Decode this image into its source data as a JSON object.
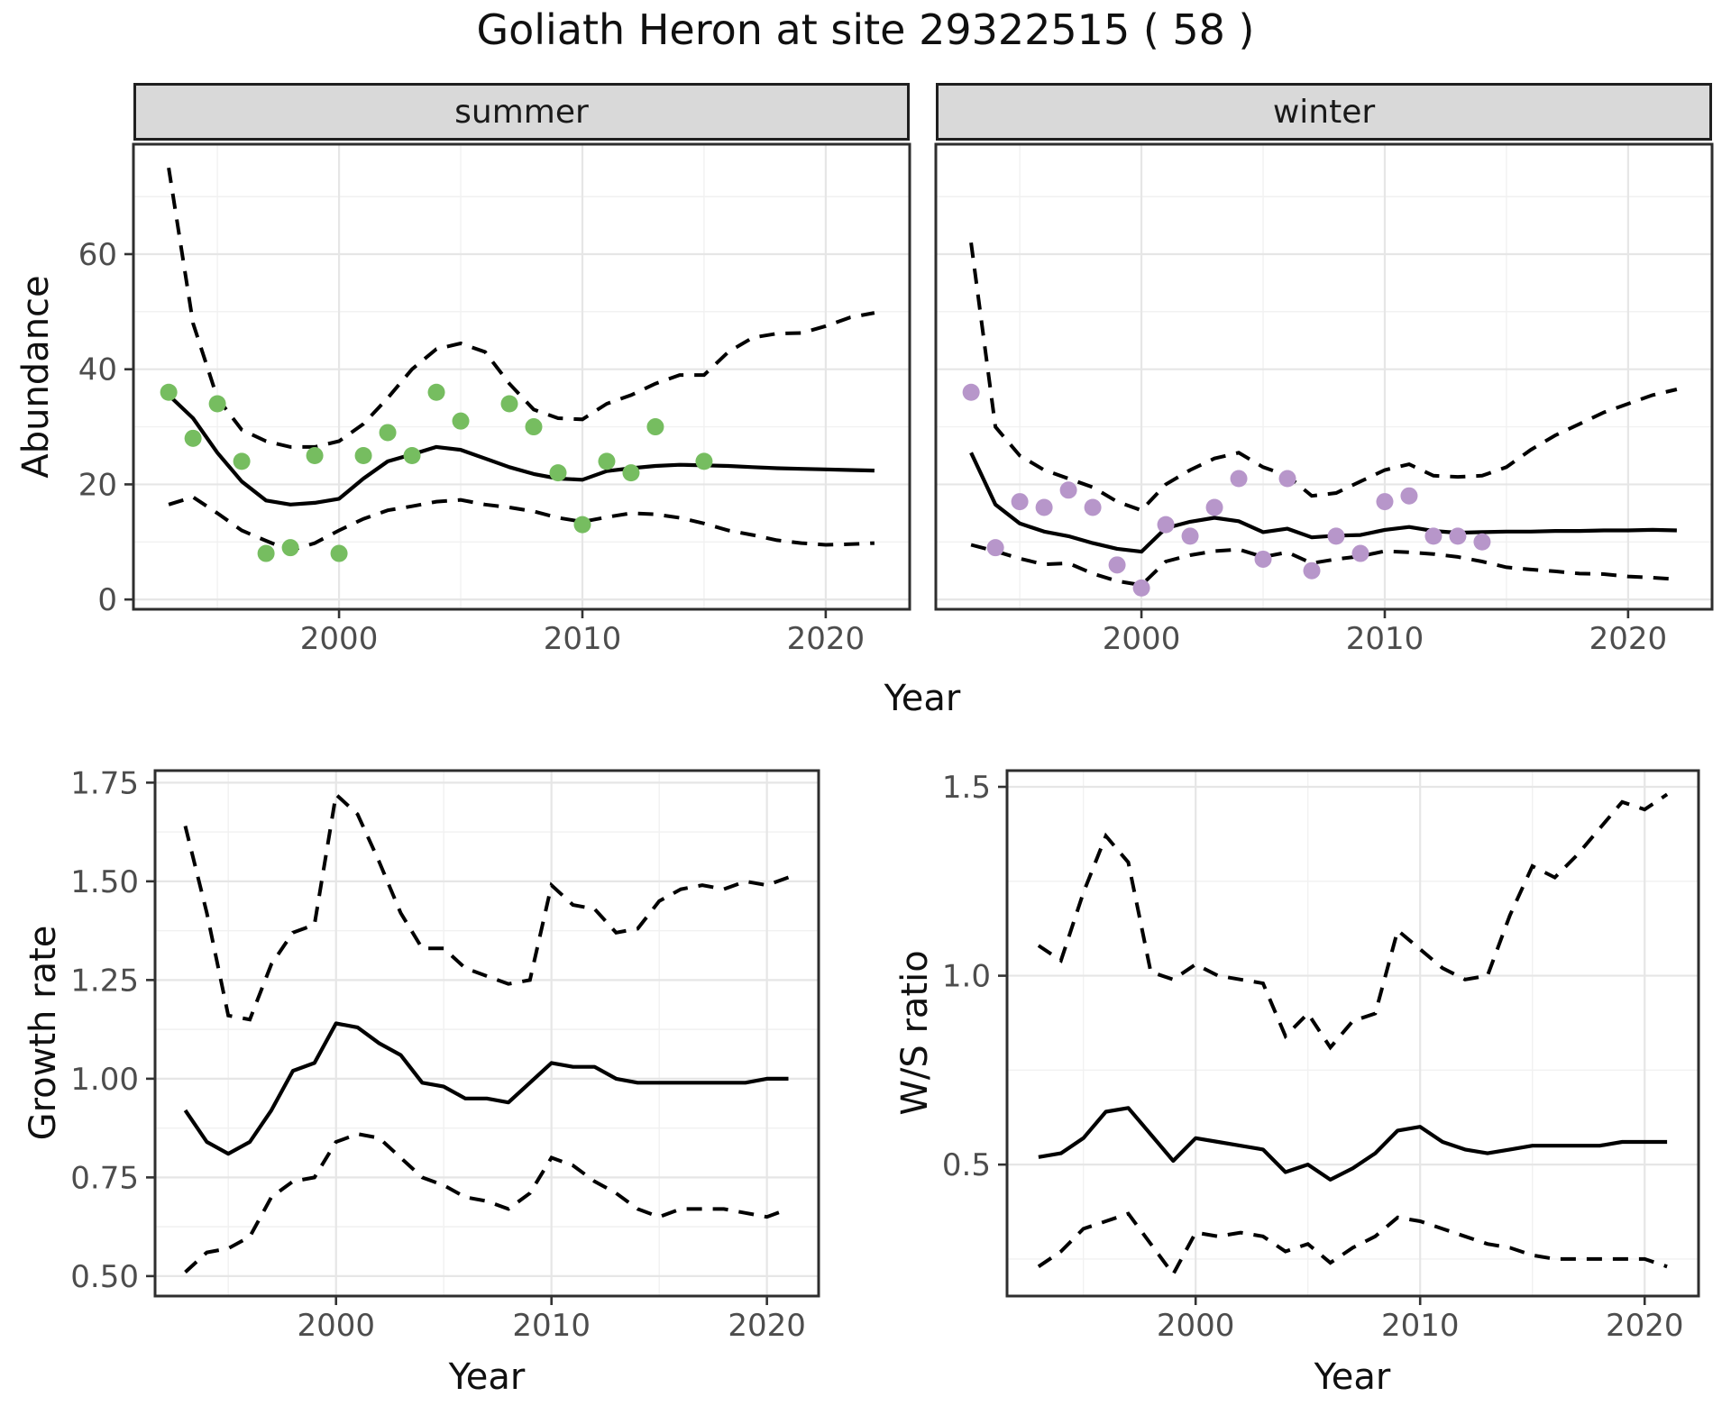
{
  "title": "Goliath Heron at site 29322515 ( 58 )",
  "axes": {
    "year_label": "Year",
    "abundance_label": "Abundance",
    "growth_label": "Growth rate",
    "ws_label": "W/S ratio"
  },
  "facets": [
    "summer",
    "winter"
  ],
  "colors": {
    "summer_point": "#76BD60",
    "winter_point": "#B796CA",
    "line": "#000000",
    "strip_bg": "#D9D9D9",
    "panel_bg": "#FFFFFF",
    "panel_border": "#2E2E2E",
    "grid_major": "#E6E6E6",
    "grid_minor": "#F1F1F1",
    "tick_label": "#4D4D4D",
    "tick_mark": "#333333"
  },
  "chart_data": [
    {
      "type": "line+scatter",
      "facet": "summer",
      "xlabel": "Year",
      "ylabel": "Abundance",
      "xlim": [
        1991.55,
        2023.45
      ],
      "ylim": [
        -1.7,
        79.1
      ],
      "x_ticks": [
        2000,
        2010,
        2020
      ],
      "x_minor": [
        1995,
        2005,
        2015
      ],
      "y_ticks": [
        0,
        20,
        40,
        60
      ],
      "y_tick_labels": [
        "0",
        "20",
        "40",
        "60"
      ],
      "y_minor": [
        10,
        30,
        50,
        70
      ],
      "years": [
        1993,
        1994,
        1995,
        1996,
        1997,
        1998,
        1999,
        2000,
        2001,
        2002,
        2003,
        2004,
        2005,
        2006,
        2007,
        2008,
        2009,
        2010,
        2011,
        2012,
        2013,
        2014,
        2015,
        2016,
        2017,
        2018,
        2019,
        2020,
        2021,
        2022
      ],
      "pred": [
        35.5,
        31.5,
        25.5,
        20.5,
        17.2,
        16.5,
        16.8,
        17.5,
        21.0,
        24.0,
        25.2,
        26.5,
        26.0,
        24.5,
        23.0,
        21.8,
        21.0,
        20.8,
        22.3,
        22.8,
        23.2,
        23.4,
        23.3,
        23.2,
        23.0,
        22.8,
        22.7,
        22.6,
        22.5,
        22.4
      ],
      "upper": [
        75.0,
        48.0,
        35.0,
        29.5,
        27.5,
        26.5,
        26.5,
        27.5,
        30.5,
        35.0,
        40.0,
        43.5,
        44.5,
        43.0,
        37.5,
        33.0,
        31.5,
        31.3,
        34.0,
        35.5,
        37.5,
        39.0,
        39.0,
        43.0,
        45.5,
        46.2,
        46.3,
        47.5,
        49.0,
        49.8
      ],
      "lower": [
        16.5,
        17.8,
        15.0,
        12.0,
        10.2,
        8.5,
        9.8,
        12.0,
        14.0,
        15.5,
        16.2,
        17.0,
        17.3,
        16.5,
        16.0,
        15.3,
        14.2,
        13.5,
        14.3,
        15.0,
        14.8,
        14.2,
        13.2,
        12.0,
        11.2,
        10.3,
        9.8,
        9.5,
        9.6,
        9.8
      ],
      "obs": [
        [
          1993,
          36
        ],
        [
          1994,
          28
        ],
        [
          1995,
          34
        ],
        [
          1996,
          24
        ],
        [
          1997,
          8
        ],
        [
          1998,
          9
        ],
        [
          1999,
          25
        ],
        [
          2000,
          8
        ],
        [
          2001,
          25
        ],
        [
          2002,
          29
        ],
        [
          2003,
          25
        ],
        [
          2004,
          36
        ],
        [
          2005,
          31
        ],
        [
          2007,
          34
        ],
        [
          2008,
          30
        ],
        [
          2009,
          22
        ],
        [
          2010,
          13
        ],
        [
          2011,
          24
        ],
        [
          2012,
          22
        ],
        [
          2013,
          30
        ],
        [
          2015,
          24
        ]
      ]
    },
    {
      "type": "line+scatter",
      "facet": "winter",
      "xlabel": "Year",
      "ylabel": "Abundance",
      "xlim": [
        1991.55,
        2023.45
      ],
      "ylim": [
        -1.7,
        79.1
      ],
      "x_ticks": [
        2000,
        2010,
        2020
      ],
      "x_minor": [
        1995,
        2005,
        2015
      ],
      "y_ticks": [
        0,
        20,
        40,
        60
      ],
      "y_tick_labels": [
        "0",
        "20",
        "40",
        "60"
      ],
      "y_minor": [
        10,
        30,
        50,
        70
      ],
      "years": [
        1993,
        1994,
        1995,
        1996,
        1997,
        1998,
        1999,
        2000,
        2001,
        2002,
        2003,
        2004,
        2005,
        2006,
        2007,
        2008,
        2009,
        2010,
        2011,
        2012,
        2013,
        2014,
        2015,
        2016,
        2017,
        2018,
        2019,
        2020,
        2021,
        2022
      ],
      "pred": [
        25.5,
        16.5,
        13.2,
        11.8,
        11.0,
        9.8,
        8.8,
        8.3,
        12.4,
        13.5,
        14.2,
        13.6,
        11.7,
        12.3,
        10.8,
        11.1,
        11.2,
        12.1,
        12.6,
        11.9,
        11.6,
        11.7,
        11.8,
        11.8,
        11.9,
        11.9,
        12.0,
        12.0,
        12.1,
        12.0
      ],
      "upper": [
        62.0,
        30.0,
        25.0,
        22.5,
        21.0,
        19.5,
        17.0,
        15.5,
        20.0,
        22.5,
        24.5,
        25.5,
        23.0,
        21.5,
        18.0,
        18.5,
        20.5,
        22.5,
        23.5,
        21.5,
        21.3,
        21.5,
        23.0,
        26.0,
        28.5,
        30.5,
        32.5,
        34.0,
        35.5,
        36.5
      ],
      "lower": [
        9.5,
        8.4,
        7.1,
        6.1,
        6.3,
        4.5,
        3.2,
        2.5,
        6.6,
        7.7,
        8.4,
        8.7,
        7.4,
        8.2,
        6.3,
        7.0,
        7.5,
        8.4,
        8.2,
        7.9,
        7.4,
        6.6,
        5.6,
        5.2,
        4.9,
        4.5,
        4.4,
        4.0,
        3.8,
        3.5
      ],
      "obs": [
        [
          1993,
          36
        ],
        [
          1994,
          9
        ],
        [
          1995,
          17
        ],
        [
          1996,
          16
        ],
        [
          1997,
          19
        ],
        [
          1998,
          16
        ],
        [
          1999,
          6
        ],
        [
          2000,
          2
        ],
        [
          2001,
          13
        ],
        [
          2002,
          11
        ],
        [
          2003,
          16
        ],
        [
          2004,
          21
        ],
        [
          2005,
          7
        ],
        [
          2006,
          21
        ],
        [
          2007,
          5
        ],
        [
          2008,
          11
        ],
        [
          2009,
          8
        ],
        [
          2010,
          17
        ],
        [
          2011,
          18
        ],
        [
          2012,
          11
        ],
        [
          2013,
          11
        ],
        [
          2014,
          10
        ]
      ]
    },
    {
      "type": "line",
      "panel": "growth_rate",
      "xlabel": "Year",
      "ylabel": "Growth rate",
      "xlim": [
        1991.6,
        2022.4
      ],
      "ylim": [
        0.4495,
        1.7805
      ],
      "x_ticks": [
        2000,
        2010,
        2020
      ],
      "x_minor": [
        1995,
        2005,
        2015
      ],
      "y_ticks": [
        0.5,
        0.75,
        1.0,
        1.25,
        1.5,
        1.75
      ],
      "y_tick_labels": [
        "0.50",
        "0.75",
        "1.00",
        "1.25",
        "1.50",
        "1.75"
      ],
      "y_minor": [
        0.625,
        0.875,
        1.125,
        1.375,
        1.625
      ],
      "years": [
        1993,
        1994,
        1995,
        1996,
        1997,
        1998,
        1999,
        2000,
        2001,
        2002,
        2003,
        2004,
        2005,
        2006,
        2007,
        2008,
        2009,
        2010,
        2011,
        2012,
        2013,
        2014,
        2015,
        2016,
        2017,
        2018,
        2019,
        2020,
        2021
      ],
      "pred": [
        0.92,
        0.84,
        0.81,
        0.84,
        0.92,
        1.02,
        1.04,
        1.14,
        1.13,
        1.09,
        1.06,
        0.99,
        0.98,
        0.95,
        0.95,
        0.94,
        0.99,
        1.04,
        1.03,
        1.03,
        1.0,
        0.99,
        0.99,
        0.99,
        0.99,
        0.99,
        0.99,
        1.0,
        1.0
      ],
      "upper": [
        1.64,
        1.42,
        1.16,
        1.15,
        1.29,
        1.37,
        1.39,
        1.72,
        1.67,
        1.55,
        1.42,
        1.33,
        1.33,
        1.28,
        1.26,
        1.24,
        1.25,
        1.49,
        1.44,
        1.43,
        1.37,
        1.38,
        1.45,
        1.48,
        1.49,
        1.48,
        1.5,
        1.49,
        1.51
      ],
      "lower": [
        0.51,
        0.56,
        0.57,
        0.6,
        0.7,
        0.74,
        0.75,
        0.84,
        0.86,
        0.85,
        0.8,
        0.75,
        0.73,
        0.7,
        0.69,
        0.67,
        0.71,
        0.8,
        0.78,
        0.74,
        0.71,
        0.67,
        0.65,
        0.67,
        0.67,
        0.67,
        0.66,
        0.65,
        0.67
      ]
    },
    {
      "type": "line",
      "panel": "ws_ratio",
      "xlabel": "Year",
      "ylabel": "W/S ratio",
      "xlim": [
        1991.6,
        2022.4
      ],
      "ylim": [
        0.152,
        1.543
      ],
      "x_ticks": [
        2000,
        2010,
        2020
      ],
      "x_minor": [
        1995,
        2005,
        2015
      ],
      "y_ticks": [
        0.5,
        1.0,
        1.5
      ],
      "y_tick_labels": [
        "0.5",
        "1.0",
        "1.5"
      ],
      "y_minor": [
        0.25,
        0.75,
        1.25
      ],
      "years": [
        1993,
        1994,
        1995,
        1996,
        1997,
        1998,
        1999,
        2000,
        2001,
        2002,
        2003,
        2004,
        2005,
        2006,
        2007,
        2008,
        2009,
        2010,
        2011,
        2012,
        2013,
        2014,
        2015,
        2016,
        2017,
        2018,
        2019,
        2020,
        2021
      ],
      "pred": [
        0.52,
        0.53,
        0.57,
        0.64,
        0.65,
        0.58,
        0.51,
        0.57,
        0.56,
        0.55,
        0.54,
        0.48,
        0.5,
        0.46,
        0.49,
        0.53,
        0.59,
        0.6,
        0.56,
        0.54,
        0.53,
        0.54,
        0.55,
        0.55,
        0.55,
        0.55,
        0.56,
        0.56,
        0.56
      ],
      "upper": [
        1.08,
        1.04,
        1.22,
        1.37,
        1.3,
        1.01,
        0.99,
        1.03,
        1.0,
        0.99,
        0.98,
        0.84,
        0.9,
        0.81,
        0.88,
        0.9,
        1.12,
        1.07,
        1.02,
        0.99,
        1.0,
        1.16,
        1.29,
        1.26,
        1.32,
        1.39,
        1.46,
        1.44,
        1.48
      ],
      "lower": [
        0.23,
        0.27,
        0.33,
        0.35,
        0.37,
        0.29,
        0.21,
        0.32,
        0.31,
        0.32,
        0.31,
        0.27,
        0.29,
        0.24,
        0.28,
        0.31,
        0.36,
        0.35,
        0.33,
        0.31,
        0.29,
        0.28,
        0.26,
        0.25,
        0.25,
        0.25,
        0.25,
        0.25,
        0.23
      ]
    }
  ]
}
